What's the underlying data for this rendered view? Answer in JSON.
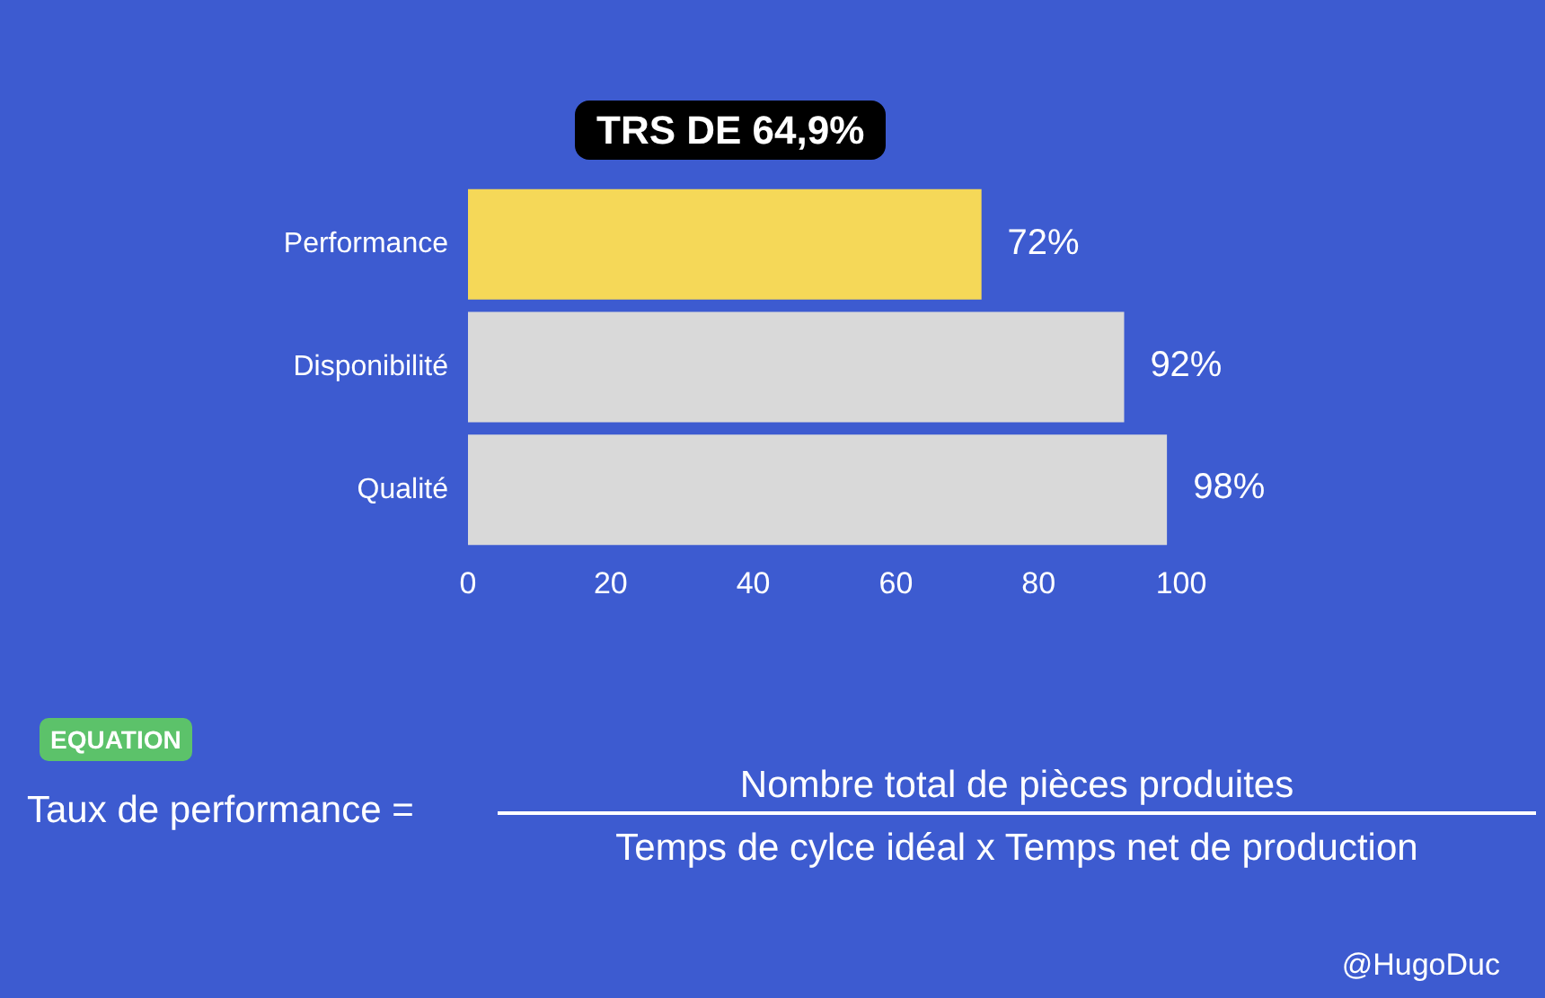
{
  "chart_data": {
    "type": "bar",
    "orientation": "horizontal",
    "title": "TRS DE  64,9%",
    "categories": [
      "Performance",
      "Disponibilité",
      "Qualité"
    ],
    "values": [
      72,
      92,
      98
    ],
    "colors": [
      "#f5d858",
      "#d9d9d9",
      "#d9d9d9"
    ],
    "value_labels": [
      "72%",
      "92%",
      "98%"
    ],
    "xlim": [
      0,
      100
    ],
    "xticks": [
      0,
      20,
      40,
      60,
      80,
      100
    ],
    "annotations": [
      "EQUATION",
      "Taux de performance =",
      "Nombre total de pièces produites",
      "Temps de cylce idéal x Temps net de production",
      "@HugoDuc"
    ]
  }
}
